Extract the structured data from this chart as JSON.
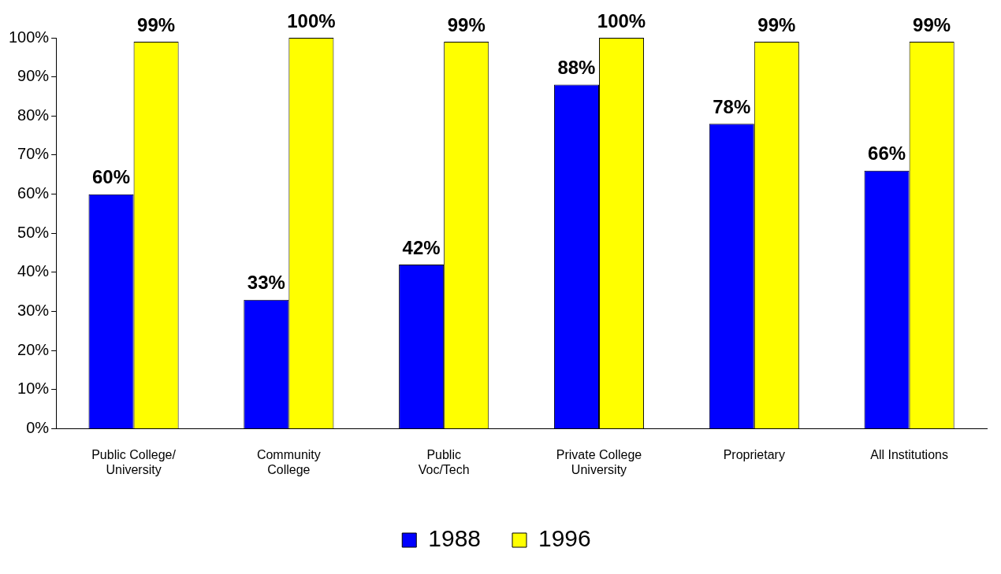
{
  "chart_data": {
    "type": "bar",
    "categories": [
      "Public College/\nUniversity",
      "Community\nCollege",
      "Public\nVoc/Tech",
      "Private College\nUniversity",
      "Proprietary",
      "All Institutions"
    ],
    "series": [
      {
        "name": "1988",
        "color": "#0000ff",
        "values": [
          60,
          33,
          42,
          88,
          78,
          66
        ],
        "value_labels": [
          "60%",
          "33%",
          "42%",
          "88%",
          "78%",
          "66%"
        ]
      },
      {
        "name": "1996",
        "color": "#ffff00",
        "values": [
          99,
          100,
          99,
          100,
          99,
          99
        ],
        "value_labels": [
          "99%",
          "100%",
          "99%",
          "100%",
          "99%",
          "99%"
        ]
      }
    ],
    "ylim": [
      0,
      100
    ],
    "yticks": [
      {
        "value": 0,
        "label": "0%"
      },
      {
        "value": 10,
        "label": "10%"
      },
      {
        "value": 20,
        "label": "20%"
      },
      {
        "value": 30,
        "label": "30%"
      },
      {
        "value": 40,
        "label": "40%"
      },
      {
        "value": 50,
        "label": "50%"
      },
      {
        "value": 60,
        "label": "60%"
      },
      {
        "value": 70,
        "label": "70%"
      },
      {
        "value": 80,
        "label": "80%"
      },
      {
        "value": 90,
        "label": "90%"
      },
      {
        "value": 100,
        "label": "100%"
      }
    ],
    "grid": false,
    "legend": "bottom"
  }
}
